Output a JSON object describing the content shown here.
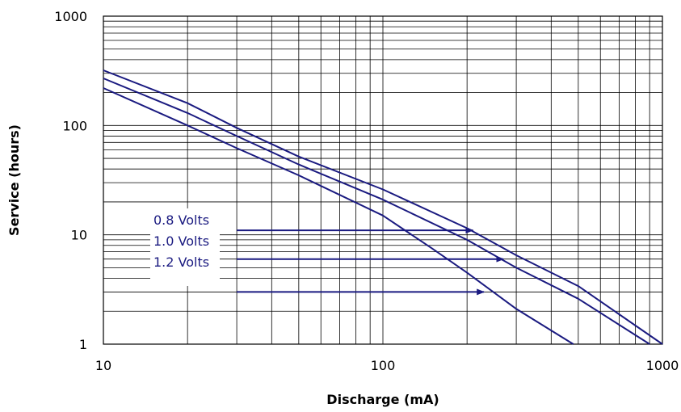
{
  "chart_data": {
    "type": "line",
    "xlabel": "Discharge (mA)",
    "ylabel": "Service (hours)",
    "x_scale": "log",
    "y_scale": "log",
    "xlim": [
      10,
      1000
    ],
    "ylim": [
      1,
      1000
    ],
    "x_ticks": [
      "10",
      "100",
      "1000"
    ],
    "y_ticks": [
      "1",
      "10",
      "100",
      "1000"
    ],
    "grid": true,
    "line_color": "#1a1a80",
    "series": [
      {
        "name": "0.8 Volts",
        "x": [
          10,
          20,
          30,
          50,
          100,
          200,
          300,
          500,
          1000
        ],
        "y": [
          320,
          160,
          95,
          52,
          26,
          11.5,
          6.5,
          3.4,
          1.0
        ]
      },
      {
        "name": "1.0 Volts",
        "x": [
          10,
          20,
          30,
          50,
          100,
          200,
          300,
          500,
          900
        ],
        "y": [
          270,
          130,
          80,
          44,
          21,
          9.0,
          5.0,
          2.6,
          1.0
        ]
      },
      {
        "name": "1.2 Volts",
        "x": [
          10,
          20,
          30,
          50,
          100,
          150,
          200,
          300,
          480
        ],
        "y": [
          220,
          100,
          62,
          35,
          15,
          7.5,
          4.5,
          2.1,
          1.0
        ]
      }
    ],
    "annotations": [
      {
        "label": "0.8 Volts",
        "arrow_from": [
          30,
          11
        ],
        "arrow_to": [
          210,
          11
        ]
      },
      {
        "label": "1.0 Volts",
        "arrow_from": [
          30,
          6
        ],
        "arrow_to": [
          270,
          6
        ]
      },
      {
        "label": "1.2 Volts",
        "arrow_from": [
          30,
          3
        ],
        "arrow_to": [
          230,
          3
        ]
      }
    ]
  }
}
